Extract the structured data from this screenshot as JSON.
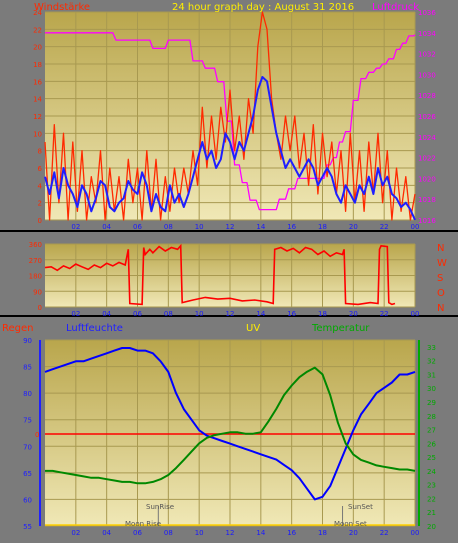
{
  "colors": {
    "wind": "#ff2a00",
    "wind_avg": "#1f1fff",
    "pressure": "#ff00ff",
    "direction": "#ff0000",
    "humidity": "#0000ff",
    "temperature": "#008800",
    "rain": "#ff0000",
    "uv": "#ffd000",
    "panel_bg_top": "#bfae55",
    "panel_bg_bottom": "#efe6b0"
  },
  "top": {
    "left_title": "Windstärke",
    "center_title": "24 hour graph day : August 31 2016",
    "right_title": "Luftdruck"
  },
  "middle": {
    "side_labels": [
      "N",
      "W",
      "S",
      "O",
      "N"
    ]
  },
  "bottom": {
    "label_rain": "Regen",
    "label_humidity": "Luftfeuchte",
    "label_uv": "UV",
    "label_temperature": "Temperatur",
    "sunrise": "SunRise",
    "sunset": "SunSet",
    "moonrise": "Moon Rise",
    "moonset": "Moon Set",
    "rain_zero_label": "0"
  },
  "chart_data": [
    {
      "type": "line",
      "title": "24 hour graph day : August 31 2016",
      "x_ticks": [
        "02",
        "04",
        "06",
        "08",
        "10",
        "12",
        "14",
        "16",
        "18",
        "20",
        "22",
        "00"
      ],
      "xlim": [
        0,
        24
      ],
      "y_left_label": "Windstärke",
      "y_left_ticks": [
        "0",
        "2",
        "4",
        "6",
        "8",
        "10",
        "12",
        "14",
        "16",
        "18",
        "20",
        "22",
        "24"
      ],
      "ylim_left": [
        0,
        24
      ],
      "y_right_label": "Luftdruck",
      "y_right_ticks": [
        "1016",
        "1018",
        "1020",
        "1022",
        "1024",
        "1026",
        "1028",
        "1030",
        "1032",
        "1034",
        "1036"
      ],
      "ylim_right": [
        1016,
        1036
      ],
      "series": [
        {
          "key": "pressure",
          "x": [
            0,
            4.4,
            4.6,
            6.8,
            7,
            7.8,
            8,
            9.4,
            9.6,
            10.2,
            10.4,
            11,
            11.2,
            11.6,
            11.8,
            12.1,
            12.3,
            12.6,
            12.8,
            13.1,
            13.3,
            13.7,
            13.9,
            14.4,
            14.6,
            15,
            15.2,
            15.6,
            15.8,
            16.2,
            16.4,
            18.1,
            18.3,
            18.5,
            18.7,
            18.9,
            19.1,
            19.3,
            19.5,
            19.8,
            20,
            20.3,
            20.5,
            20.8,
            21,
            21.3,
            21.5,
            21.7,
            21.9,
            22.1,
            22.3,
            22.6,
            22.8,
            23,
            23.2,
            23.4,
            23.6,
            23.9,
            24
          ],
          "y": [
            1034,
            1034,
            1033.3,
            1033.3,
            1032.5,
            1032.5,
            1033.3,
            1033.3,
            1031.3,
            1031.3,
            1030.6,
            1030.6,
            1029.3,
            1029.3,
            1025.5,
            1025.5,
            1021.3,
            1021.3,
            1019.6,
            1019.6,
            1017.9,
            1017.9,
            1017,
            1017,
            1017,
            1017,
            1018,
            1018,
            1019,
            1019,
            1020,
            1020,
            1021.3,
            1021.3,
            1022,
            1022,
            1023.5,
            1023.5,
            1024.5,
            1024.5,
            1027.5,
            1027.5,
            1029.6,
            1029.6,
            1030.2,
            1030.2,
            1030.6,
            1030.6,
            1031,
            1031,
            1031.5,
            1031.5,
            1032.4,
            1032.4,
            1033,
            1033,
            1033.7,
            1033.7,
            1033.8
          ]
        },
        {
          "key": "wind_avg",
          "x": [
            0,
            0.3,
            0.6,
            0.9,
            1.2,
            1.5,
            1.8,
            2.1,
            2.4,
            2.7,
            3,
            3.3,
            3.6,
            3.9,
            4.2,
            4.5,
            4.8,
            5.1,
            5.4,
            5.7,
            6,
            6.3,
            6.6,
            6.9,
            7.2,
            7.5,
            7.8,
            8.1,
            8.4,
            8.7,
            9,
            9.3,
            9.6,
            9.9,
            10.2,
            10.5,
            10.8,
            11.1,
            11.4,
            11.7,
            12,
            12.3,
            12.6,
            12.9,
            13.2,
            13.5,
            13.8,
            14.1,
            14.4,
            14.7,
            15,
            15.3,
            15.6,
            15.9,
            16.2,
            16.5,
            16.8,
            17.1,
            17.4,
            17.7,
            18,
            18.3,
            18.6,
            18.9,
            19.2,
            19.5,
            19.8,
            20.1,
            20.4,
            20.7,
            21,
            21.3,
            21.6,
            21.9,
            22.2,
            22.5,
            22.8,
            23.1,
            23.4,
            23.7,
            24
          ],
          "y": [
            5,
            3,
            5.5,
            2.5,
            6,
            4,
            3,
            1.5,
            4,
            3,
            1,
            2.5,
            4.5,
            4,
            1.5,
            1,
            2,
            2.5,
            4.5,
            3.5,
            3,
            5.5,
            4,
            1,
            3,
            1.5,
            1,
            4,
            2,
            3,
            1.5,
            3,
            5,
            7,
            9,
            7,
            8,
            6,
            7,
            10,
            9,
            7,
            9,
            8,
            10,
            12,
            15,
            16.5,
            16,
            13,
            10,
            8,
            6,
            7,
            6,
            5,
            6,
            7,
            6,
            4,
            5,
            6,
            5,
            3,
            2,
            4,
            3,
            2,
            4,
            3,
            5,
            3,
            6,
            4,
            5,
            3,
            2.5,
            1.5,
            2,
            1.2,
            0
          ]
        },
        {
          "key": "wind",
          "x": [
            0,
            0.3,
            0.6,
            0.9,
            1.2,
            1.5,
            1.8,
            2.1,
            2.4,
            2.7,
            3,
            3.3,
            3.6,
            3.9,
            4.2,
            4.5,
            4.8,
            5.1,
            5.4,
            5.7,
            6,
            6.3,
            6.6,
            6.9,
            7.2,
            7.5,
            7.8,
            8.1,
            8.4,
            8.7,
            9,
            9.3,
            9.6,
            9.9,
            10.2,
            10.5,
            10.8,
            11.1,
            11.4,
            11.7,
            12,
            12.3,
            12.6,
            12.9,
            13.2,
            13.5,
            13.8,
            14.1,
            14.4,
            14.7,
            15,
            15.3,
            15.6,
            15.9,
            16.2,
            16.5,
            16.8,
            17.1,
            17.4,
            17.7,
            18,
            18.3,
            18.6,
            18.9,
            19.2,
            19.5,
            19.8,
            20.1,
            20.4,
            20.7,
            21,
            21.3,
            21.6,
            21.9,
            22.2,
            22.5,
            22.8,
            23.1,
            23.4,
            23.7,
            24
          ],
          "y": [
            9,
            0,
            11,
            2,
            10,
            0,
            9,
            1,
            8,
            0,
            5,
            2,
            8,
            0,
            6,
            1,
            5,
            0,
            7,
            2,
            6,
            0,
            8,
            1,
            7,
            0,
            5,
            1,
            6,
            2,
            6,
            3,
            8,
            4,
            13,
            6,
            12,
            7,
            13,
            9,
            15,
            8,
            12,
            7,
            14,
            10,
            20,
            24,
            22,
            14,
            10,
            7,
            12,
            8,
            12,
            6,
            10,
            4,
            11,
            3,
            10,
            5,
            9,
            3,
            8,
            1,
            10,
            2,
            8,
            1,
            9,
            3,
            10,
            2,
            8,
            0,
            6,
            1,
            5,
            0,
            3
          ]
        }
      ]
    },
    {
      "type": "line",
      "title": "",
      "x_ticks": [
        "02",
        "04",
        "06",
        "08",
        "10",
        "12",
        "14",
        "16",
        "18",
        "20",
        "22",
        "00"
      ],
      "xlim": [
        0,
        24
      ],
      "y_left_ticks": [
        "0",
        "90",
        "180",
        "270",
        "360"
      ],
      "ylim": [
        0,
        360
      ],
      "y_right_labels": [
        "N",
        "W",
        "S",
        "O",
        "N"
      ],
      "series": [
        {
          "key": "direction",
          "x": [
            0,
            0.4,
            0.8,
            1.2,
            1.6,
            2,
            2.4,
            2.8,
            3.2,
            3.6,
            4,
            4.4,
            4.8,
            5.2,
            5.4,
            5.5,
            6.3,
            6.4,
            6.5,
            6.8,
            7,
            7.4,
            7.8,
            8.2,
            8.6,
            8.8,
            8.9,
            9.6,
            10.4,
            11.2,
            12,
            12.8,
            13.6,
            14.4,
            14.8,
            14.9,
            15.3,
            15.7,
            16.1,
            16.5,
            16.9,
            17.3,
            17.7,
            18.1,
            18.5,
            18.9,
            19.3,
            19.4,
            19.5,
            20.3,
            21.1,
            21.6,
            21.7,
            21.8,
            22.2,
            22.3,
            22.5,
            22.7
          ],
          "y": [
            225,
            230,
            210,
            235,
            220,
            245,
            230,
            215,
            240,
            225,
            250,
            235,
            255,
            240,
            330,
            20,
            15,
            340,
            300,
            330,
            310,
            345,
            320,
            340,
            330,
            350,
            25,
            40,
            55,
            45,
            50,
            35,
            40,
            30,
            20,
            330,
            340,
            320,
            335,
            310,
            340,
            330,
            300,
            320,
            290,
            310,
            300,
            330,
            20,
            15,
            25,
            20,
            330,
            350,
            345,
            25,
            15,
            20
          ]
        }
      ]
    },
    {
      "type": "line",
      "title": "",
      "x_ticks": [
        "02",
        "04",
        "06",
        "08",
        "10",
        "12",
        "14",
        "16",
        "18",
        "20",
        "22",
        "00"
      ],
      "xlim": [
        0,
        24
      ],
      "y_left_label": "Luftfeuchte",
      "y_left_ticks": [
        "55",
        "60",
        "65",
        "70",
        "75",
        "80",
        "85",
        "90"
      ],
      "ylim_left": [
        55,
        90
      ],
      "y_right_label": "Temperatur",
      "y_right_ticks": [
        "20",
        "21",
        "22",
        "23",
        "24",
        "25",
        "26",
        "27",
        "28",
        "29",
        "30",
        "31",
        "32",
        "33"
      ],
      "ylim_right": [
        20,
        33.5
      ],
      "rain_zero_line": 0,
      "annotations": [
        "SunRise",
        "SunSet",
        "Moon Rise",
        "Moon Set"
      ],
      "series": [
        {
          "key": "humidity",
          "x": [
            0,
            0.5,
            1,
            1.5,
            2,
            2.5,
            3,
            3.5,
            4,
            4.5,
            5,
            5.5,
            6,
            6.5,
            7,
            7.5,
            8,
            8.5,
            9,
            9.5,
            10,
            10.5,
            11,
            11.5,
            12,
            12.5,
            13,
            13.5,
            14,
            14.5,
            15,
            15.5,
            16,
            16.5,
            17,
            17.5,
            18,
            18.5,
            19,
            19.5,
            20,
            20.5,
            21,
            21.5,
            22,
            22.5,
            23,
            23.5,
            24
          ],
          "y": [
            84,
            84.5,
            85,
            85.5,
            86,
            86,
            86.5,
            87,
            87.5,
            88,
            88.5,
            88.5,
            88,
            88,
            87.5,
            86,
            84,
            80,
            77,
            75,
            73,
            72,
            71.5,
            71,
            70.5,
            70,
            69.5,
            69,
            68.5,
            68,
            67.5,
            66.5,
            65.5,
            64,
            62,
            60,
            60.5,
            62.5,
            66,
            69.5,
            73,
            76,
            78,
            80,
            81,
            82,
            83.5,
            83.5,
            84
          ]
        },
        {
          "key": "temperature",
          "x": [
            0,
            0.5,
            1,
            1.5,
            2,
            2.5,
            3,
            3.5,
            4,
            4.5,
            5,
            5.5,
            6,
            6.5,
            7,
            7.5,
            8,
            8.5,
            9,
            9.5,
            10,
            10.5,
            11,
            11.5,
            12,
            12.5,
            13,
            13.5,
            14,
            14.5,
            15,
            15.5,
            16,
            16.5,
            17,
            17.5,
            18,
            18.5,
            19,
            19.5,
            20,
            20.5,
            21,
            21.5,
            22,
            22.5,
            23,
            23.5,
            24
          ],
          "y": [
            24,
            24,
            23.9,
            23.8,
            23.7,
            23.6,
            23.5,
            23.5,
            23.4,
            23.3,
            23.2,
            23.2,
            23.1,
            23.1,
            23.2,
            23.4,
            23.7,
            24.2,
            24.8,
            25.4,
            26,
            26.4,
            26.6,
            26.7,
            26.8,
            26.8,
            26.7,
            26.7,
            26.8,
            27.6,
            28.5,
            29.5,
            30.2,
            30.8,
            31.2,
            31.5,
            31,
            29.5,
            27.5,
            26,
            25.2,
            24.8,
            24.6,
            24.4,
            24.3,
            24.2,
            24.1,
            24.1,
            24
          ]
        }
      ]
    }
  ]
}
